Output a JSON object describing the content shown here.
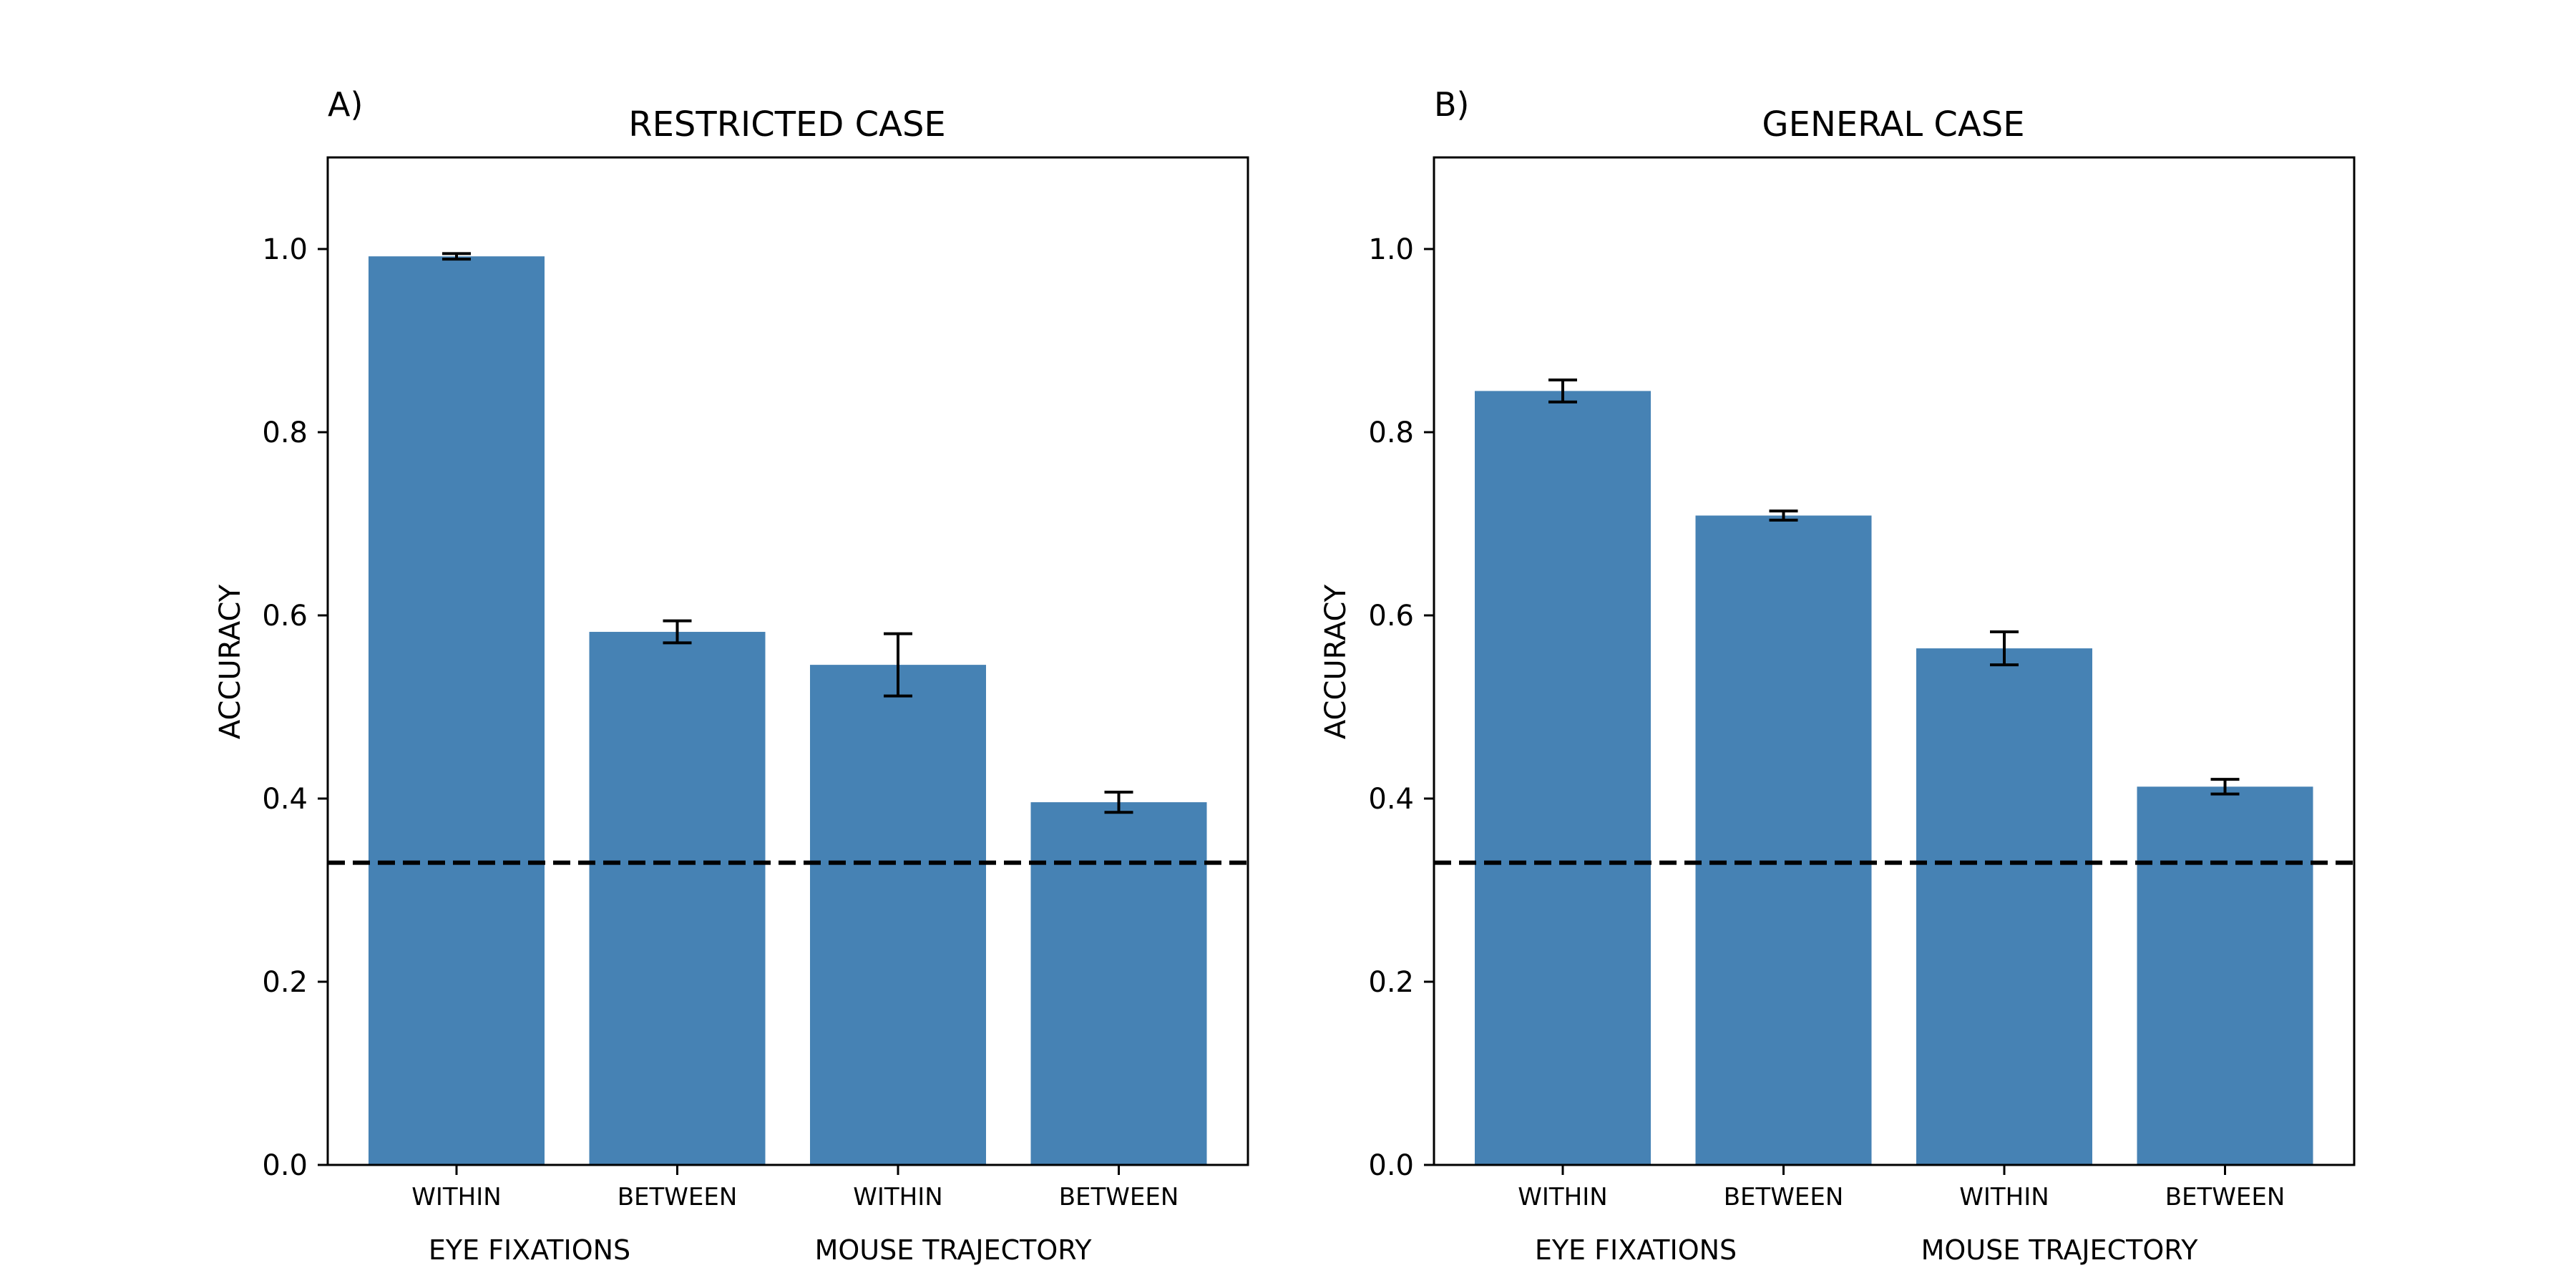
{
  "chart_data": [
    {
      "panel_label": "A)",
      "type": "bar",
      "title": "RESTRICTED CASE",
      "ylabel": "ACCURACY",
      "xlabel": "",
      "ylim": [
        0,
        1.1
      ],
      "yticks": [
        "0.0",
        "0.2",
        "0.4",
        "0.6",
        "0.8",
        "1.0"
      ],
      "categories": [
        "WITHIN",
        "BETWEEN",
        "WITHIN",
        "BETWEEN"
      ],
      "groups": [
        "EYE FIXATIONS",
        "MOUSE TRAJECTORY"
      ],
      "values": [
        0.992,
        0.582,
        0.546,
        0.396
      ],
      "errors": [
        0.003,
        0.012,
        0.034,
        0.011
      ],
      "reference_line": 0.33,
      "grid": false,
      "color": "#4682b4"
    },
    {
      "panel_label": "B)",
      "type": "bar",
      "title": "GENERAL CASE",
      "ylabel": "ACCURACY",
      "xlabel": "",
      "ylim": [
        0,
        1.1
      ],
      "yticks": [
        "0.0",
        "0.2",
        "0.4",
        "0.6",
        "0.8",
        "1.0"
      ],
      "categories": [
        "WITHIN",
        "BETWEEN",
        "WITHIN",
        "BETWEEN"
      ],
      "groups": [
        "EYE FIXATIONS",
        "MOUSE TRAJECTORY"
      ],
      "values": [
        0.845,
        0.709,
        0.564,
        0.413
      ],
      "errors": [
        0.012,
        0.005,
        0.018,
        0.008
      ],
      "reference_line": 0.33,
      "grid": false,
      "color": "#4682b4"
    }
  ]
}
